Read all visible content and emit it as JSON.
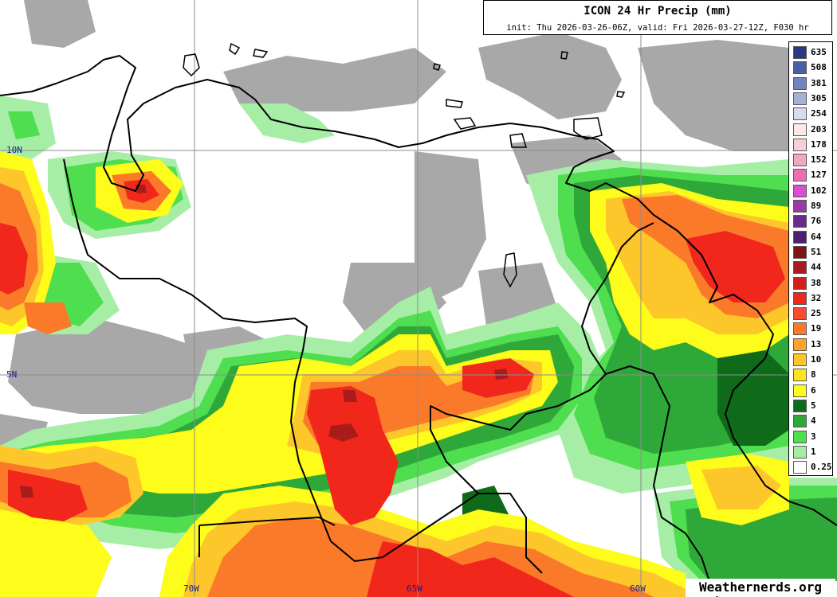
{
  "title": "ICON 24 Hr Precip (mm)",
  "subtitle": "init: Thu 2026-03-26-06Z, valid: Fri 2026-03-27-12Z, F030 hr",
  "watermark": "Weathernerds.org",
  "gridlines": {
    "latitudes": [
      {
        "label": "10N",
        "value": 10
      },
      {
        "label": "5N",
        "value": 5
      }
    ],
    "longitudes": [
      {
        "label": "70W",
        "value": -70
      },
      {
        "label": "65W",
        "value": -65
      },
      {
        "label": "60W",
        "value": -60
      }
    ]
  },
  "legend": [
    {
      "label": "635",
      "color": "#2b3a7e"
    },
    {
      "label": "508",
      "color": "#4a5ea3"
    },
    {
      "label": "381",
      "color": "#7084bd"
    },
    {
      "label": "305",
      "color": "#a4b1d6"
    },
    {
      "label": "254",
      "color": "#d7dcec"
    },
    {
      "label": "203",
      "color": "#fbe9e9"
    },
    {
      "label": "178",
      "color": "#f7cfd5"
    },
    {
      "label": "152",
      "color": "#f3a6be"
    },
    {
      "label": "127",
      "color": "#ec6fb6"
    },
    {
      "label": "102",
      "color": "#d94fcf"
    },
    {
      "label": "89",
      "color": "#9a3aa6"
    },
    {
      "label": "76",
      "color": "#6c2a8e"
    },
    {
      "label": "64",
      "color": "#4e1e70"
    },
    {
      "label": "51",
      "color": "#7c1414"
    },
    {
      "label": "44",
      "color": "#a81c1c"
    },
    {
      "label": "38",
      "color": "#d41f1f"
    },
    {
      "label": "32",
      "color": "#f2271c"
    },
    {
      "label": "25",
      "color": "#f84b32"
    },
    {
      "label": "19",
      "color": "#fb7a2a"
    },
    {
      "label": "13",
      "color": "#fca42c"
    },
    {
      "label": "10",
      "color": "#fdc72b"
    },
    {
      "label": "8",
      "color": "#fde320"
    },
    {
      "label": "6",
      "color": "#fefc1a"
    },
    {
      "label": "5",
      "color": "#0f6b19"
    },
    {
      "label": "4",
      "color": "#2fa83a"
    },
    {
      "label": "3",
      "color": "#4fde4f"
    },
    {
      "label": "1",
      "color": "#a6eea6"
    },
    {
      "label": "0.25",
      "color": "#ffffff"
    }
  ],
  "colors": {
    "trace": "#a8a8a8",
    "light": "#a6eea6",
    "mid": "#4fde4f",
    "green": "#2fa83a",
    "darkgreen": "#0f6b19",
    "yellow": "#fefc1a",
    "gold": "#fdc72b",
    "orange": "#fb7a2a",
    "red": "#f2271c",
    "darkred": "#a81c1c",
    "border": "#000000",
    "grid": "#8c8c8c"
  }
}
